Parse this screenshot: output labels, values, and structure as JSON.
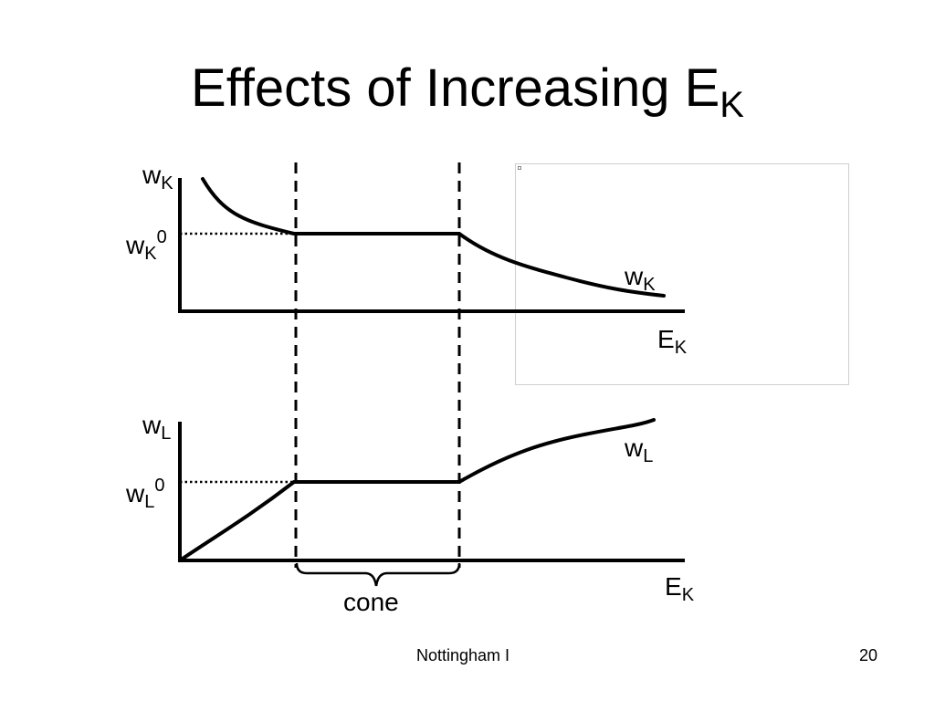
{
  "slide": {
    "title_main": "Effects of Increasing E",
    "title_sub": "K",
    "footer_center": "Nottingham I",
    "page_number": "20"
  },
  "top_panel": {
    "y_label": {
      "base": "w",
      "sub": "K"
    },
    "ref_label": {
      "base": "w",
      "sub": "K",
      "sup": "0"
    },
    "curve_label": {
      "base": "w",
      "sub": "K"
    },
    "x_label": {
      "base": "E",
      "sub": "K"
    }
  },
  "bottom_panel": {
    "y_label": {
      "base": "w",
      "sub": "L"
    },
    "ref_label": {
      "base": "w",
      "sub": "L",
      "sup": "0"
    },
    "curve_label": {
      "base": "w",
      "sub": "L"
    },
    "x_label": {
      "base": "E",
      "sub": "K"
    }
  },
  "brace_label": "cone",
  "colors": {
    "ink": "#000000",
    "frame": "#cfcfcf",
    "background": "#ffffff"
  }
}
